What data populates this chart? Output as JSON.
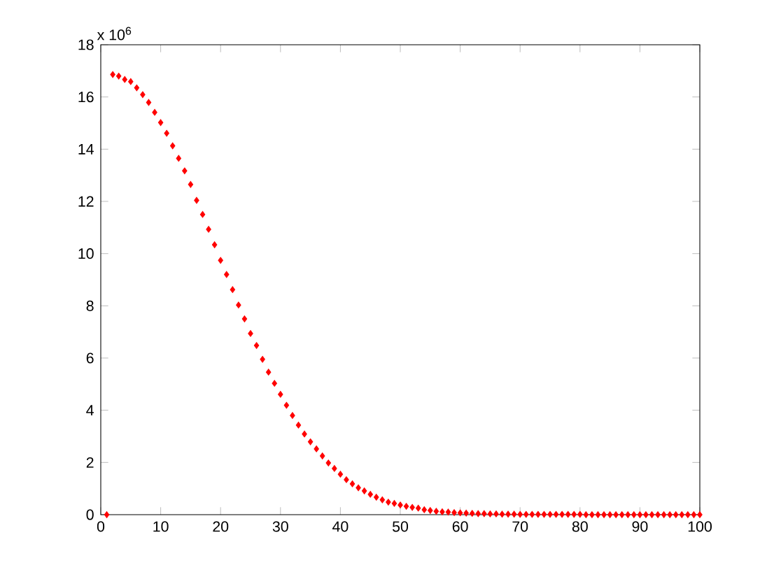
{
  "chart_data": {
    "type": "scatter",
    "marker": "diamond",
    "grid": false,
    "annotations": [
      "x 10$^{6}$"
    ],
    "xlim": [
      0,
      100
    ],
    "ylim": [
      0,
      18
    ],
    "xticks": [
      0,
      10,
      20,
      30,
      40,
      50,
      60,
      70,
      80,
      90,
      100
    ],
    "yticks": [
      0,
      2,
      4,
      6,
      8,
      10,
      12,
      14,
      16,
      18
    ],
    "x": [
      1,
      2,
      3,
      4,
      5,
      6,
      7,
      8,
      9,
      10,
      11,
      12,
      13,
      14,
      15,
      16,
      17,
      18,
      19,
      20,
      21,
      22,
      23,
      24,
      25,
      26,
      27,
      28,
      29,
      30,
      31,
      32,
      33,
      34,
      35,
      36,
      37,
      38,
      39,
      40,
      41,
      42,
      43,
      44,
      45,
      46,
      47,
      48,
      49,
      50,
      51,
      52,
      53,
      54,
      55,
      56,
      57,
      58,
      59,
      60,
      61,
      62,
      63,
      64,
      65,
      66,
      67,
      68,
      69,
      70,
      71,
      72,
      73,
      74,
      75,
      76,
      77,
      78,
      79,
      80,
      81,
      82,
      83,
      84,
      85,
      86,
      87,
      88,
      89,
      90,
      91,
      92,
      93,
      94,
      95,
      96,
      97,
      98,
      99,
      100
    ],
    "series": [
      {
        "color": "#ff0000",
        "values": [
          0,
          16.86,
          16.8,
          16.67,
          16.59,
          16.35,
          16.09,
          15.79,
          15.41,
          15.02,
          14.61,
          14.13,
          13.65,
          13.17,
          12.65,
          12.04,
          11.5,
          10.93,
          10.34,
          9.74,
          9.2,
          8.62,
          8.03,
          7.5,
          6.94,
          6.48,
          5.95,
          5.46,
          5.03,
          4.61,
          4.19,
          3.8,
          3.43,
          3.09,
          2.79,
          2.52,
          2.25,
          1.98,
          1.77,
          1.55,
          1.34,
          1.18,
          1.03,
          0.91,
          0.78,
          0.67,
          0.57,
          0.48,
          0.43,
          0.37,
          0.32,
          0.28,
          0.25,
          0.19,
          0.16,
          0.13,
          0.11,
          0.1,
          0.08,
          0.07,
          0.06,
          0.05,
          0.04,
          0.04,
          0.03,
          0.03,
          0.02,
          0.02,
          0.02,
          0.01,
          0.01,
          0.01,
          0.01,
          0.01,
          0.01,
          0.01,
          0.01,
          0.01,
          0.01,
          0.01,
          0,
          0,
          0,
          0,
          0,
          0,
          0,
          0,
          0,
          0,
          0,
          0,
          0,
          0,
          0,
          0,
          0,
          0,
          0,
          0
        ]
      }
    ]
  }
}
